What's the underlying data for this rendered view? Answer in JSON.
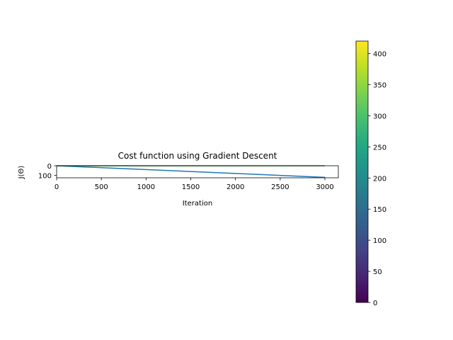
{
  "chart_data": {
    "type": "line",
    "title": "Cost function using Gradient Descent",
    "xlabel": "Iteration",
    "ylabel": "J(Θ)",
    "xlim": [
      0,
      3150
    ],
    "ylim": [
      125,
      0
    ],
    "x_tick_labels": [
      "0",
      "500",
      "1000",
      "1500",
      "2000",
      "2500",
      "3000"
    ],
    "y_tick_labels": [
      "0",
      "100"
    ],
    "series": [
      {
        "color": "#1f77b4",
        "points": [
          [
            0,
            0
          ],
          [
            3000,
            120
          ]
        ]
      },
      {
        "color": "#2ca02c",
        "points": [
          [
            0,
            0
          ],
          [
            3000,
            0
          ]
        ]
      }
    ],
    "colorbar": {
      "colormap": "viridis",
      "range": [
        0,
        420
      ],
      "tick_labels": [
        "0",
        "50",
        "100",
        "150",
        "200",
        "250",
        "300",
        "350",
        "400"
      ]
    },
    "grid": false
  }
}
